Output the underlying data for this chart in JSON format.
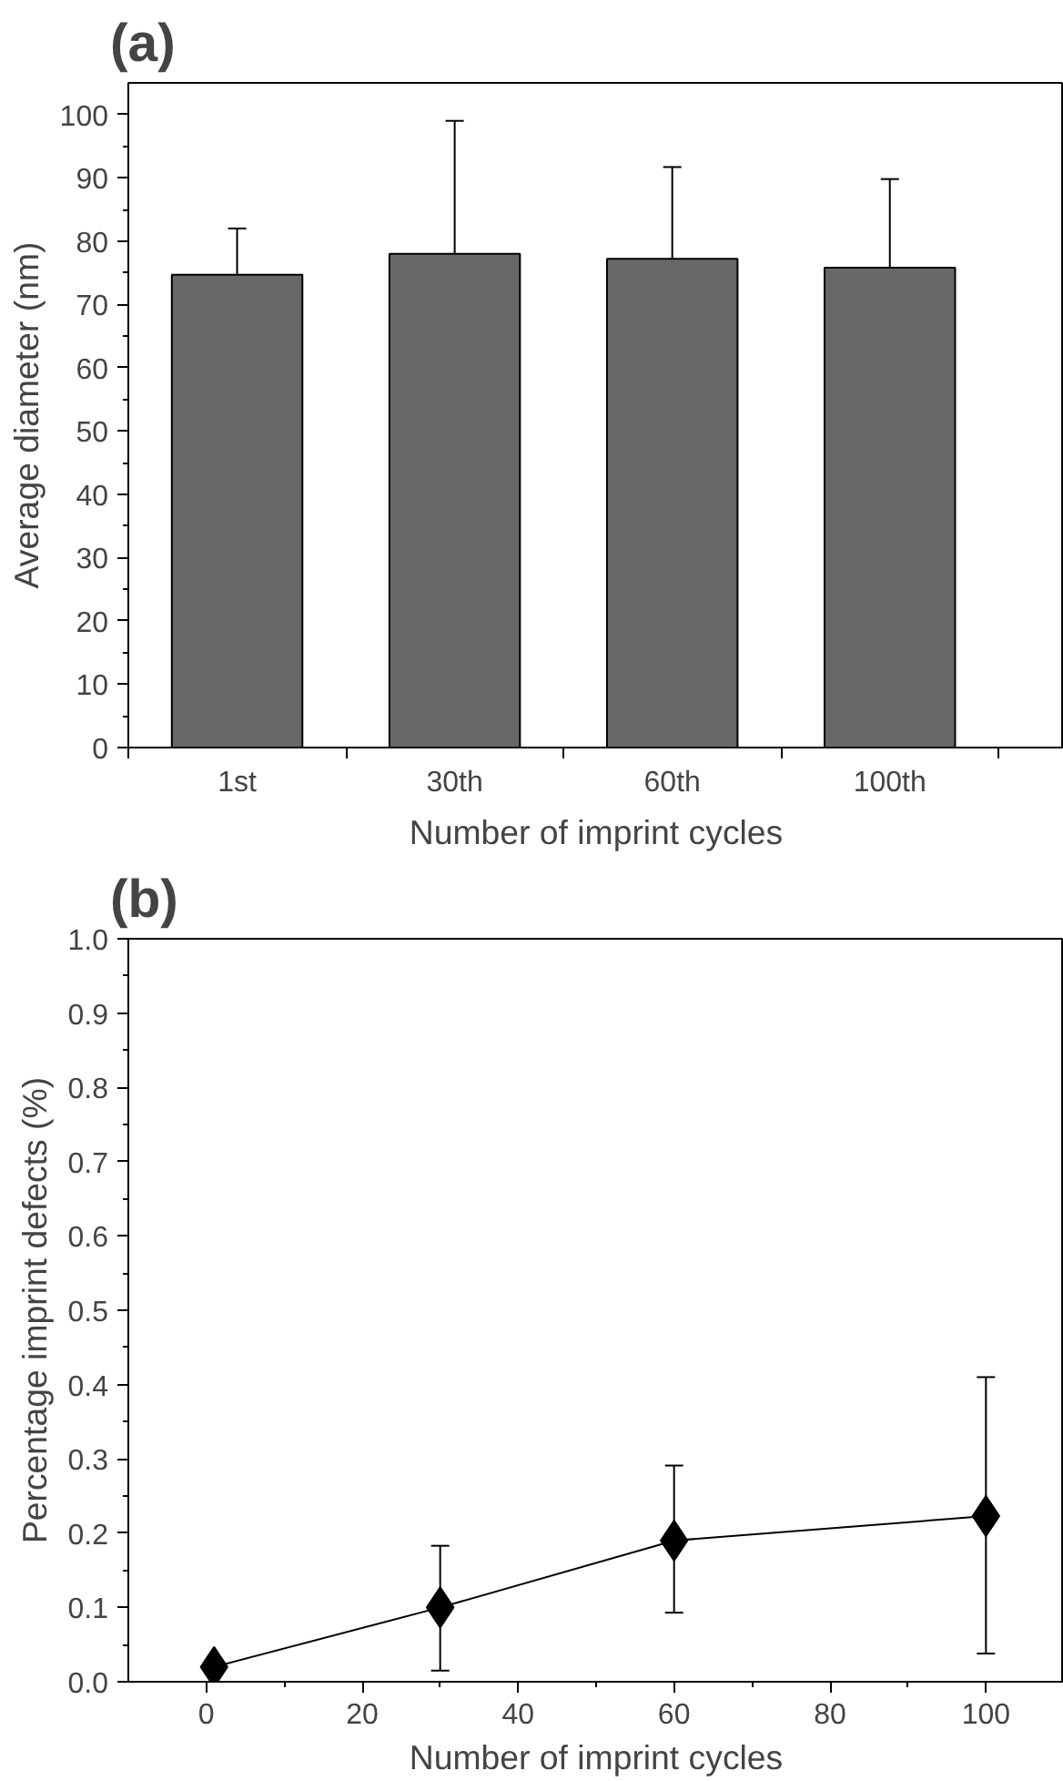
{
  "chart_data": [
    {
      "type": "bar",
      "title": "(a)",
      "xlabel": "Number of imprint cycles",
      "ylabel": "Average diameter (nm)",
      "categories": [
        "1st",
        "30th",
        "60th",
        "100th"
      ],
      "values": [
        74.7,
        78,
        77.2,
        75.8
      ],
      "color": "#686868",
      "errors": [
        [
          74.7,
          82
        ],
        [
          78,
          99
        ],
        [
          77.2,
          91.7
        ],
        [
          75.8,
          89.8
        ]
      ],
      "ylim": [
        0,
        105
      ],
      "yticks": [
        0,
        10,
        20,
        30,
        40,
        50,
        60,
        70,
        80,
        90,
        100
      ],
      "grid": false
    },
    {
      "type": "line",
      "title": "(b)",
      "xlabel": "Number of imprint cycles",
      "ylabel": "Percentage imprint defects (%)",
      "x": [
        1,
        30,
        60,
        100
      ],
      "values": [
        0.02,
        0.1,
        0.19,
        0.223
      ],
      "color": "#000000",
      "errors": [
        null,
        [
          0.015,
          0.183
        ],
        [
          0.093,
          0.291
        ],
        [
          0.038,
          0.41
        ]
      ],
      "marker": "diamond",
      "line_style": "solid",
      "xlim": [
        -10,
        110
      ],
      "xticks": [
        0,
        20,
        40,
        60,
        80,
        100
      ],
      "ylim": [
        0,
        1.0
      ],
      "yticks": [
        {
          "value": 0,
          "label": "0.0"
        },
        0.1,
        0.2,
        0.3,
        0.4,
        0.5,
        0.6,
        0.7,
        0.8,
        0.9,
        {
          "value": 1,
          "label": "1.0"
        }
      ],
      "grid": false
    }
  ]
}
